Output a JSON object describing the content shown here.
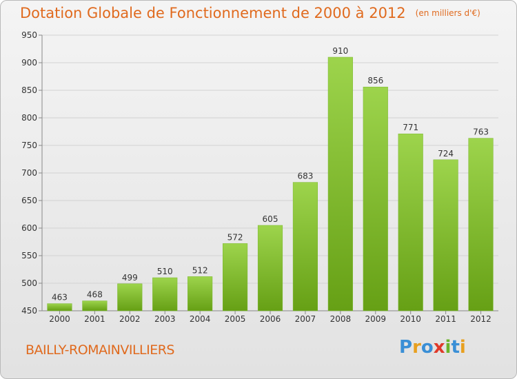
{
  "title": "Dotation Globale de Fonctionnement de 2000 à 2012",
  "unit": "(en milliers d'€)",
  "town": "BAILLY-ROMAINVILLIERS",
  "logo": {
    "letters": [
      "P",
      "r",
      "o",
      "x",
      "i",
      "t",
      "i"
    ],
    "colors": [
      "#3a8fd6",
      "#e8a020",
      "#3a8fd6",
      "#e03a2a",
      "#6cb42a",
      "#3a8fd6",
      "#e8a020"
    ]
  },
  "colors": {
    "bar_top": "#9dd44c",
    "bar_bottom": "#66a015",
    "text": "#e06a1e"
  },
  "chart_data": {
    "type": "bar",
    "categories": [
      "2000",
      "2001",
      "2002",
      "2003",
      "2004",
      "2005",
      "2006",
      "2007",
      "2008",
      "2009",
      "2010",
      "2011",
      "2012"
    ],
    "values": [
      463,
      468,
      499,
      510,
      512,
      572,
      605,
      683,
      910,
      856,
      771,
      724,
      763
    ],
    "ylim": [
      450,
      950
    ],
    "yticks": [
      450,
      500,
      550,
      600,
      650,
      700,
      750,
      800,
      850,
      900,
      950
    ],
    "grid": true
  }
}
